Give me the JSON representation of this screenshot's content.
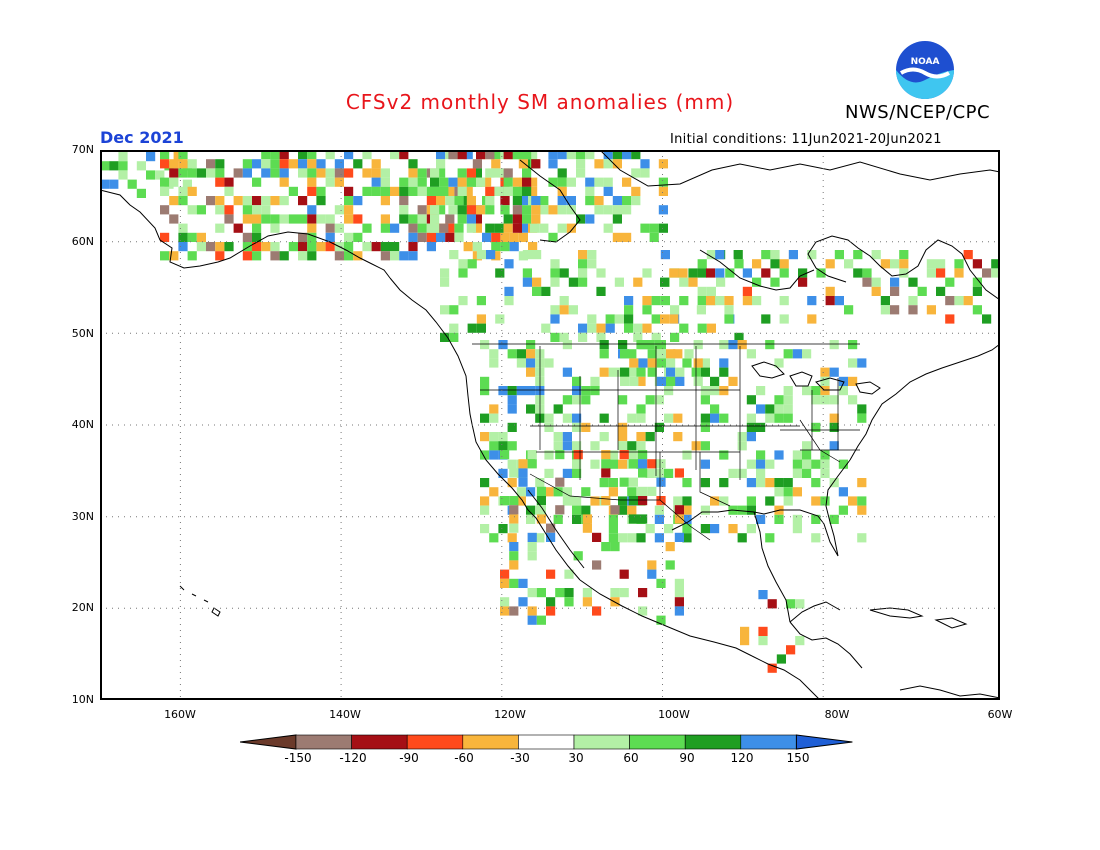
{
  "header": {
    "title": "CFSv2 monthly SM anomalies (mm)",
    "agency": "NWS/NCEP/CPC",
    "valid_month": "Dec 2021",
    "initial_conditions": "Initial conditions: 11Jun2021-20Jun2021"
  },
  "logo": {
    "text": "NOAA",
    "name": "noaa-logo"
  },
  "map": {
    "projection": "lat-lon",
    "lon_range": [
      -172,
      -60
    ],
    "lat_range": [
      10,
      70
    ],
    "lat_ticks": [
      "70N",
      "60N",
      "50N",
      "40N",
      "30N",
      "20N",
      "10N"
    ],
    "lon_ticks": [
      "160W",
      "140W",
      "120W",
      "100W",
      "80W",
      "60W"
    ],
    "grid": "dotted",
    "region": "North America"
  },
  "legend": {
    "unit": "mm",
    "breaks": [
      "-150",
      "-120",
      "-90",
      "-60",
      "-30",
      "30",
      "60",
      "90",
      "120",
      "150"
    ],
    "colors": [
      "#6b3a2a",
      "#9c7b72",
      "#a50f15",
      "#ff4a1c",
      "#f8b53c",
      "#ffffff",
      "#b3f0a6",
      "#5ddc52",
      "#1f9e22",
      "#3d8fe8",
      "#1f5fd6"
    ]
  },
  "colors": {
    "title": "#e8151b",
    "valid_month": "#1c43d6"
  }
}
